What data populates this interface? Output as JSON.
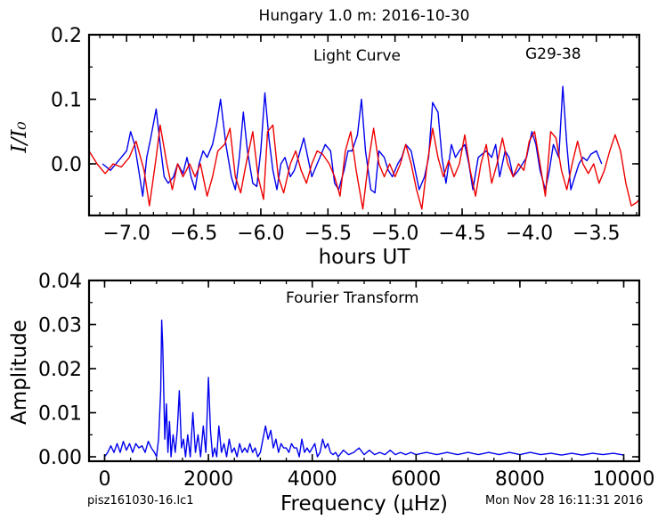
{
  "title": "Hungary 1.0 m:  2016-10-30",
  "footer_left": "pisz161030-16.lc1",
  "footer_right": "Mon Nov 28 16:11:31 2016",
  "colors": {
    "observed": "#0000ee",
    "model": "#ee0000",
    "axes": "#000000"
  },
  "chart_data": [
    {
      "type": "line",
      "panel": "top",
      "annotations": [
        "Light Curve",
        "G29-38"
      ],
      "xlabel": "hours UT",
      "ylabel": "I/I_0",
      "ylabel_display": "I/I₀",
      "xlim": [
        -7.28,
        -3.18
      ],
      "ylim": [
        -0.08,
        0.2
      ],
      "xticks": [
        -7.0,
        -6.5,
        -6.0,
        -5.5,
        -5.0,
        -4.5,
        -4.0,
        -3.5
      ],
      "xtick_labels": [
        "−7.0",
        "−6.5",
        "−6.0",
        "−5.5",
        "−5.0",
        "−4.5",
        "−4.0",
        "−3.5"
      ],
      "yticks": [
        0.0,
        0.1,
        0.2
      ],
      "ytick_labels": [
        "0.0",
        "0.1",
        "0.2"
      ],
      "grid": false,
      "series": [
        {
          "color": "#0000ee",
          "x": [
            -7.18,
            -7.12,
            -7.06,
            -7.0,
            -6.97,
            -6.94,
            -6.91,
            -6.88,
            -6.85,
            -6.82,
            -6.78,
            -6.75,
            -6.72,
            -6.69,
            -6.65,
            -6.62,
            -6.58,
            -6.55,
            -6.52,
            -6.49,
            -6.46,
            -6.43,
            -6.4,
            -6.36,
            -6.33,
            -6.3,
            -6.26,
            -6.22,
            -6.19,
            -6.16,
            -6.13,
            -6.1,
            -6.06,
            -6.03,
            -6.0,
            -5.97,
            -5.94,
            -5.91,
            -5.88,
            -5.85,
            -5.82,
            -5.78,
            -5.75,
            -5.72,
            -5.68,
            -5.65,
            -5.62,
            -5.58,
            -5.55,
            -5.52,
            -5.48,
            -5.45,
            -5.42,
            -5.38,
            -5.35,
            -5.32,
            -5.28,
            -5.25,
            -5.22,
            -5.18,
            -5.15,
            -5.12,
            -5.08,
            -5.05,
            -5.02,
            -4.98,
            -4.95,
            -4.92,
            -4.88,
            -4.85,
            -4.82,
            -4.78,
            -4.75,
            -4.72,
            -4.68,
            -4.65,
            -4.62,
            -4.58,
            -4.55,
            -4.52,
            -4.48,
            -4.45,
            -4.42,
            -4.38,
            -4.35,
            -4.32,
            -4.28,
            -4.25,
            -4.22,
            -4.18,
            -4.15,
            -4.12,
            -4.08,
            -4.05,
            -4.02,
            -3.98,
            -3.95,
            -3.92,
            -3.88,
            -3.85,
            -3.82,
            -3.78,
            -3.75,
            -3.72,
            -3.69,
            -3.66,
            -3.63,
            -3.6,
            -3.57,
            -3.54,
            -3.5,
            -3.46
          ],
          "y": [
            0.0,
            -0.01,
            0.005,
            0.02,
            0.05,
            0.03,
            -0.01,
            -0.05,
            0.01,
            0.04,
            0.085,
            0.03,
            -0.02,
            -0.03,
            -0.02,
            0.0,
            -0.015,
            0.01,
            -0.02,
            -0.04,
            0.0,
            0.02,
            0.01,
            0.03,
            0.06,
            0.1,
            0.03,
            -0.02,
            -0.04,
            0.01,
            0.08,
            0.02,
            -0.03,
            -0.035,
            0.02,
            0.11,
            0.04,
            -0.01,
            -0.04,
            0.0,
            0.01,
            -0.02,
            -0.01,
            0.01,
            0.04,
            0.01,
            -0.02,
            0.0,
            0.015,
            0.03,
            0.02,
            -0.03,
            -0.04,
            -0.01,
            0.02,
            0.02,
            0.045,
            0.1,
            0.02,
            -0.04,
            -0.045,
            0.02,
            0.01,
            -0.01,
            -0.02,
            0.0,
            0.01,
            0.03,
            0.02,
            -0.01,
            -0.04,
            -0.02,
            0.01,
            0.095,
            0.08,
            0.01,
            -0.03,
            0.03,
            0.01,
            0.02,
            0.03,
            0.0,
            -0.04,
            0.01,
            0.015,
            0.02,
            0.01,
            0.03,
            -0.02,
            0.02,
            0.01,
            -0.02,
            -0.01,
            0.0,
            0.01,
            0.05,
            0.03,
            -0.01,
            -0.04,
            -0.01,
            0.03,
            0.01,
            0.12,
            0.03,
            -0.04,
            -0.02,
            0.0,
            0.01,
            0.005,
            0.015,
            0.02,
            0.0
          ]
        },
        {
          "color": "#ee0000",
          "x": [
            -7.28,
            -7.22,
            -7.16,
            -7.1,
            -7.04,
            -6.98,
            -6.93,
            -6.87,
            -6.83,
            -6.78,
            -6.75,
            -6.7,
            -6.66,
            -6.62,
            -6.58,
            -6.53,
            -6.49,
            -6.45,
            -6.4,
            -6.36,
            -6.32,
            -6.27,
            -6.23,
            -6.19,
            -6.15,
            -6.11,
            -6.06,
            -6.02,
            -5.98,
            -5.95,
            -5.91,
            -5.87,
            -5.83,
            -5.78,
            -5.74,
            -5.7,
            -5.66,
            -5.62,
            -5.58,
            -5.54,
            -5.49,
            -5.45,
            -5.41,
            -5.37,
            -5.33,
            -5.29,
            -5.24,
            -5.2,
            -5.16,
            -5.12,
            -5.08,
            -5.04,
            -5.0,
            -4.96,
            -4.92,
            -4.88,
            -4.84,
            -4.8,
            -4.76,
            -4.72,
            -4.68,
            -4.64,
            -4.6,
            -4.56,
            -4.52,
            -4.48,
            -4.44,
            -4.4,
            -4.36,
            -4.32,
            -4.28,
            -4.24,
            -4.2,
            -4.16,
            -4.12,
            -4.08,
            -4.04,
            -4.0,
            -3.96,
            -3.92,
            -3.88,
            -3.84,
            -3.8,
            -3.76,
            -3.72,
            -3.68,
            -3.64,
            -3.6,
            -3.56,
            -3.52,
            -3.48,
            -3.44,
            -3.4,
            -3.36,
            -3.32,
            -3.28,
            -3.24,
            -3.2,
            -3.18
          ],
          "y": [
            0.02,
            0.0,
            -0.015,
            0.0,
            -0.005,
            0.01,
            0.035,
            -0.01,
            -0.065,
            0.01,
            0.06,
            0.0,
            -0.04,
            0.0,
            -0.02,
            0.0,
            -0.02,
            0.0,
            -0.05,
            -0.02,
            0.02,
            0.03,
            0.055,
            -0.02,
            -0.045,
            0.0,
            0.05,
            -0.02,
            -0.055,
            0.05,
            0.06,
            -0.02,
            -0.045,
            0.0,
            0.02,
            -0.01,
            -0.03,
            0.0,
            0.02,
            0.015,
            0.0,
            -0.02,
            -0.05,
            0.02,
            0.05,
            -0.01,
            -0.07,
            0.0,
            0.055,
            0.0,
            -0.02,
            0.0,
            -0.02,
            0.0,
            0.03,
            0.0,
            -0.04,
            -0.07,
            0.0,
            0.055,
            0.01,
            -0.02,
            0.005,
            -0.02,
            0.0,
            0.045,
            -0.01,
            -0.05,
            0.0,
            0.03,
            -0.03,
            0.0,
            0.04,
            0.0,
            -0.02,
            0.0,
            -0.01,
            0.035,
            0.05,
            0.0,
            -0.05,
            0.05,
            0.04,
            -0.01,
            -0.04,
            0.0,
            0.035,
            0.0,
            -0.015,
            0.0,
            -0.03,
            -0.01,
            0.02,
            0.045,
            0.02,
            -0.03,
            -0.065,
            -0.06,
            -0.055
          ]
        }
      ]
    },
    {
      "type": "line",
      "panel": "bottom",
      "annotations": [
        "Fourier Transform"
      ],
      "xlabel": "Frequency (μHz)",
      "ylabel": "Amplitude",
      "xlim": [
        -300,
        10300
      ],
      "ylim": [
        -0.001,
        0.04
      ],
      "xticks": [
        0,
        2000,
        4000,
        6000,
        8000,
        10000
      ],
      "xtick_labels": [
        "0",
        "2000",
        "4000",
        "6000",
        "8000",
        "10000"
      ],
      "yticks": [
        0.0,
        0.01,
        0.02,
        0.03,
        0.04
      ],
      "ytick_labels": [
        "0.00",
        "0.01",
        "0.02",
        "0.03",
        "0.04"
      ],
      "grid": false,
      "series": [
        {
          "color": "#0000ee",
          "x": [
            0,
            60,
            120,
            180,
            240,
            300,
            360,
            420,
            480,
            540,
            600,
            660,
            720,
            780,
            840,
            900,
            960,
            1000,
            1040,
            1080,
            1100,
            1120,
            1160,
            1190,
            1220,
            1250,
            1280,
            1320,
            1360,
            1400,
            1440,
            1480,
            1520,
            1560,
            1600,
            1650,
            1700,
            1750,
            1800,
            1850,
            1900,
            1950,
            2000,
            2040,
            2080,
            2120,
            2160,
            2200,
            2250,
            2300,
            2350,
            2400,
            2450,
            2500,
            2550,
            2600,
            2650,
            2700,
            2750,
            2800,
            2850,
            2900,
            2950,
            3000,
            3050,
            3100,
            3150,
            3200,
            3250,
            3300,
            3350,
            3400,
            3450,
            3500,
            3550,
            3600,
            3650,
            3700,
            3750,
            3800,
            3850,
            3900,
            3950,
            4000,
            4050,
            4100,
            4150,
            4200,
            4250,
            4300,
            4350,
            4400,
            4450,
            4500,
            4600,
            4700,
            4800,
            4900,
            5000,
            5100,
            5200,
            5300,
            5400,
            5500,
            5600,
            5700,
            5800,
            5900,
            6000,
            6200,
            6400,
            6600,
            6800,
            7000,
            7200,
            7400,
            7600,
            7800,
            8000,
            8200,
            8400,
            8600,
            8800,
            9000,
            9200,
            9400,
            9600,
            9800,
            10000
          ],
          "y": [
            0.0,
            0.001,
            0.0025,
            0.001,
            0.003,
            0.001,
            0.0035,
            0.0015,
            0.003,
            0.001,
            0.003,
            0.002,
            0.0025,
            0.001,
            0.0035,
            0.002,
            0.001,
            0.0,
            0.004,
            0.015,
            0.031,
            0.025,
            0.004,
            0.012,
            0.001,
            0.008,
            0.0,
            0.005,
            0.001,
            0.006,
            0.015,
            0.002,
            0.004,
            0.0,
            0.005,
            0.0,
            0.01,
            0.001,
            0.005,
            0.0,
            0.007,
            0.001,
            0.018,
            0.006,
            0.0,
            0.002,
            0.0,
            0.007,
            0.001,
            0.003,
            0.0,
            0.004,
            0.001,
            0.002,
            0.0,
            0.003,
            0.001,
            0.002,
            0.001,
            0.003,
            0.001,
            0.002,
            0.0,
            0.001,
            0.004,
            0.007,
            0.004,
            0.006,
            0.002,
            0.004,
            0.001,
            0.003,
            0.002,
            0.002,
            0.001,
            0.003,
            0.002,
            0.002,
            0.0,
            0.004,
            0.001,
            0.002,
            0.001,
            0.002,
            0.003,
            0.0,
            0.001,
            0.004,
            0.002,
            0.003,
            0.001,
            0.0005,
            0.001,
            0.0,
            0.0015,
            0.0005,
            0.001,
            0.002,
            0.0005,
            0.0015,
            0.0005,
            0.001,
            0.0005,
            0.0015,
            0.0005,
            0.001,
            0.0005,
            0.001,
            0.0005,
            0.001,
            0.0005,
            0.001,
            0.0005,
            0.001,
            0.0005,
            0.001,
            0.0005,
            0.001,
            0.0005,
            0.001,
            0.0005,
            0.0008,
            0.0004,
            0.0008,
            0.0004,
            0.0008,
            0.0005,
            0.0008,
            0.0004
          ]
        }
      ]
    }
  ]
}
